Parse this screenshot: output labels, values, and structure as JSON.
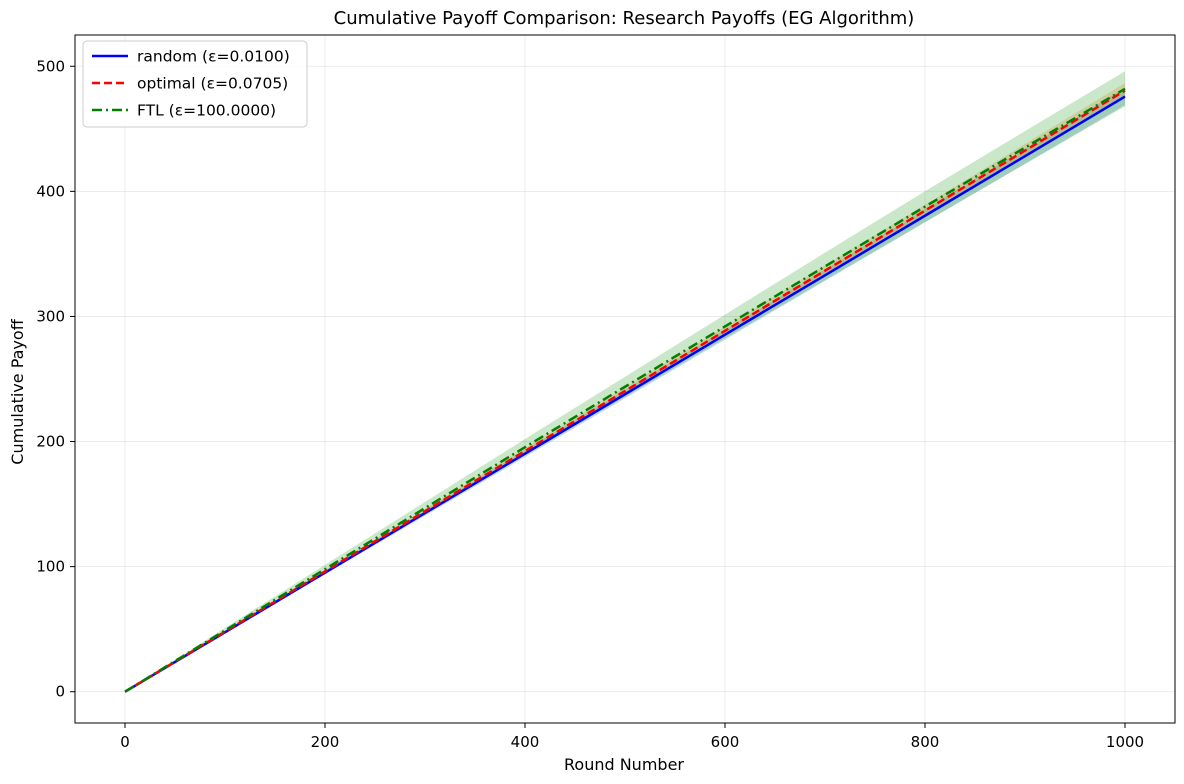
{
  "chart_data": {
    "type": "line",
    "title": "Cumulative Payoff Comparison: Research Payoffs (EG Algorithm)",
    "xlabel": "Round Number",
    "ylabel": "Cumulative Payoff",
    "xlim": [
      -50,
      1050
    ],
    "ylim": [
      -25,
      525
    ],
    "xticks": [
      0,
      200,
      400,
      600,
      800,
      1000
    ],
    "yticks": [
      0,
      100,
      200,
      300,
      400,
      500
    ],
    "grid": true,
    "legend_position": "upper left",
    "x": [
      0,
      100,
      200,
      300,
      400,
      500,
      600,
      700,
      800,
      900,
      1000
    ],
    "series": [
      {
        "name": "random (ε=0.0100)",
        "color": "#0000ff",
        "style": "solid",
        "values": [
          0,
          47.5,
          95.2,
          142.8,
          190.3,
          237.8,
          285.4,
          332.9,
          380.5,
          428.1,
          475.8
        ],
        "band_low": [
          0,
          46.8,
          93.8,
          140.7,
          187.6,
          234.5,
          281.4,
          328.3,
          375.2,
          422.1,
          469
        ],
        "band_high": [
          0,
          48.2,
          96.6,
          144.9,
          193.0,
          241.1,
          289.4,
          337.5,
          385.8,
          434.1,
          482.6
        ],
        "band_color": "#1f77b4"
      },
      {
        "name": "optimal (ε=0.0705)",
        "color": "#ff0000",
        "style": "dashed",
        "values": [
          0,
          48.0,
          96.2,
          144.3,
          192.4,
          240.4,
          288.5,
          336.6,
          384.6,
          432.6,
          480.6
        ],
        "band_low": [
          0,
          47.4,
          95.0,
          142.5,
          190.0,
          237.5,
          285.0,
          332.5,
          380.0,
          427.3,
          474.6
        ],
        "band_high": [
          0,
          48.6,
          97.4,
          146.1,
          194.8,
          243.3,
          292.0,
          340.7,
          389.2,
          437.9,
          486.6
        ],
        "band_color": "#ff7f0e"
      },
      {
        "name": "FTL (ε=100.0000)",
        "color": "#008000",
        "style": "dashdot",
        "values": [
          0,
          49.0,
          98.0,
          146.8,
          195.5,
          243.8,
          292.0,
          340.0,
          387.8,
          435.0,
          482.0
        ],
        "band_low": [
          0,
          47.0,
          94.6,
          141.9,
          189.0,
          235.8,
          282.5,
          329.0,
          375.5,
          421.8,
          468.0
        ],
        "band_high": [
          0,
          51.0,
          101.4,
          151.7,
          202.0,
          251.8,
          301.5,
          351.0,
          400.1,
          448.2,
          496.0
        ],
        "band_color": "#2ca02c"
      }
    ]
  }
}
